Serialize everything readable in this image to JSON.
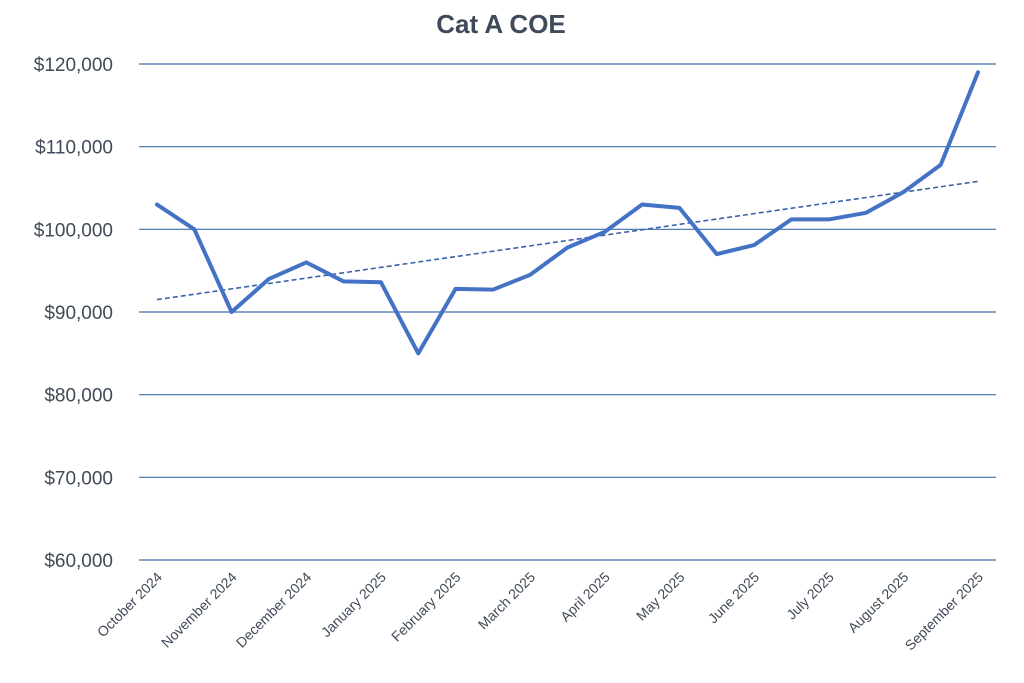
{
  "colors": {
    "series": "#4472c4",
    "trend": "#3a62aa",
    "grid": "#3f6fae",
    "text": "#404a58"
  },
  "chart_data": {
    "type": "line",
    "title": "Cat A COE",
    "xlabel": "",
    "ylabel": "",
    "ylim": [
      60000,
      120000
    ],
    "yticks": [
      60000,
      70000,
      80000,
      90000,
      100000,
      110000,
      120000
    ],
    "ytick_labels": [
      "$60,000",
      "$70,000",
      "$80,000",
      "$90,000",
      "$100,000",
      "$110,000",
      "$120,000"
    ],
    "grid": true,
    "legend": "none",
    "x_labels": [
      "October 2024",
      "November 2024",
      "December 2024",
      "January 2025",
      "February 2025",
      "March 2025",
      "April 2025",
      "May 2025",
      "June 2025",
      "July 2025",
      "August 2025",
      "September 2025"
    ],
    "series": [
      {
        "name": "Cat A COE",
        "values": [
          103000,
          100000,
          90000,
          94000,
          96000,
          93700,
          93600,
          85000,
          92800,
          92700,
          94500,
          97800,
          99700,
          103000,
          102600,
          97000,
          98100,
          101200,
          101200,
          102000,
          104500,
          107800,
          119000
        ]
      }
    ],
    "trendline": {
      "type": "linear",
      "start": 91500,
      "end": 105800
    }
  }
}
